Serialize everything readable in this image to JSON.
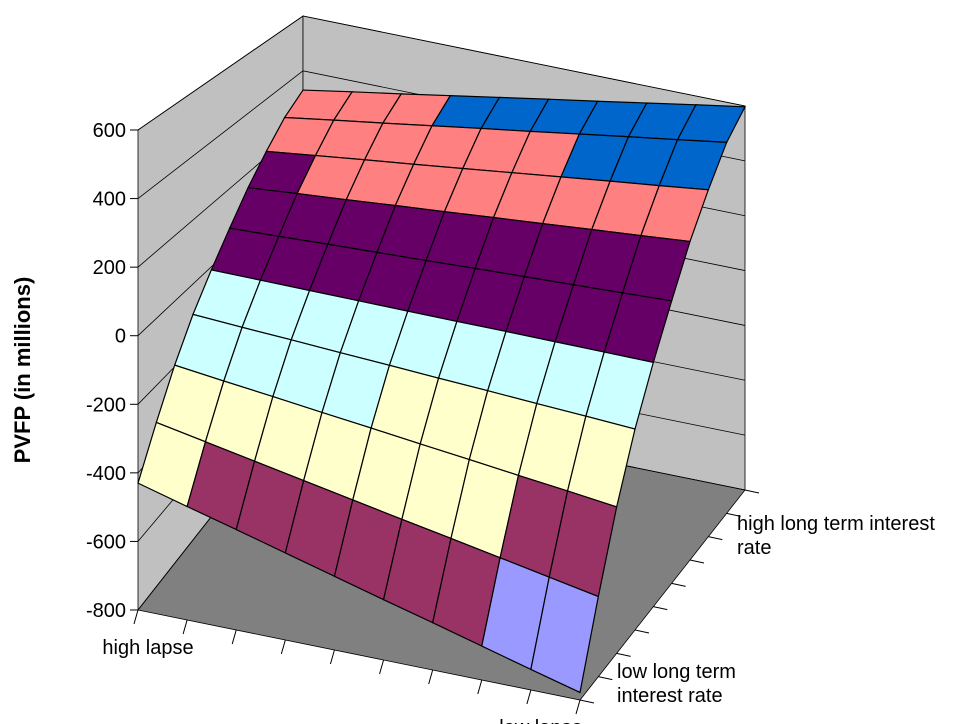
{
  "chart_data": {
    "type": "surface",
    "y_label": "PVFP (in millions)",
    "ylim": [
      -800,
      600
    ],
    "yticks": [
      -800,
      -600,
      -400,
      -200,
      0,
      200,
      400,
      600
    ],
    "band_colors": [
      "#9999ff",
      "#993366",
      "#ffffcc",
      "#ccffff",
      "#660066",
      "#ff8080",
      "#0066cc"
    ],
    "x_categories": [
      "high lapse",
      null,
      null,
      null,
      null,
      null,
      null,
      null,
      "low lapse",
      null
    ],
    "depth_categories": [
      "low long term interest rate",
      null,
      null,
      null,
      null,
      null,
      null,
      null,
      null,
      "high long term interest rate"
    ],
    "values": [
      [
        -430,
        -469,
        -507,
        -546,
        -585,
        -624,
        -662,
        -701,
        -740,
        -778
      ],
      [
        -310,
        -338,
        -366,
        -394,
        -422,
        -450,
        -477,
        -505,
        -533,
        -561
      ],
      [
        -195,
        -213,
        -230,
        -248,
        -265,
        -283,
        -300,
        -318,
        -335,
        -353
      ],
      [
        -95,
        -104,
        -112,
        -121,
        -129,
        -138,
        -146,
        -155,
        -163,
        -172
      ],
      [
        -10,
        -11,
        -12,
        -13,
        -14,
        -15,
        -15,
        -16,
        -17,
        -18
      ],
      [
        70,
        76,
        83,
        89,
        95,
        102,
        108,
        114,
        120,
        127
      ],
      [
        150,
        164,
        177,
        191,
        204,
        218,
        231,
        245,
        258,
        272
      ],
      [
        220,
        240,
        260,
        279,
        299,
        319,
        339,
        359,
        378,
        398
      ],
      [
        285,
        311,
        336,
        362,
        388,
        413,
        439,
        465,
        490,
        516
      ],
      [
        330,
        360,
        389,
        419,
        449,
        479,
        508,
        538,
        568,
        597
      ]
    ]
  }
}
